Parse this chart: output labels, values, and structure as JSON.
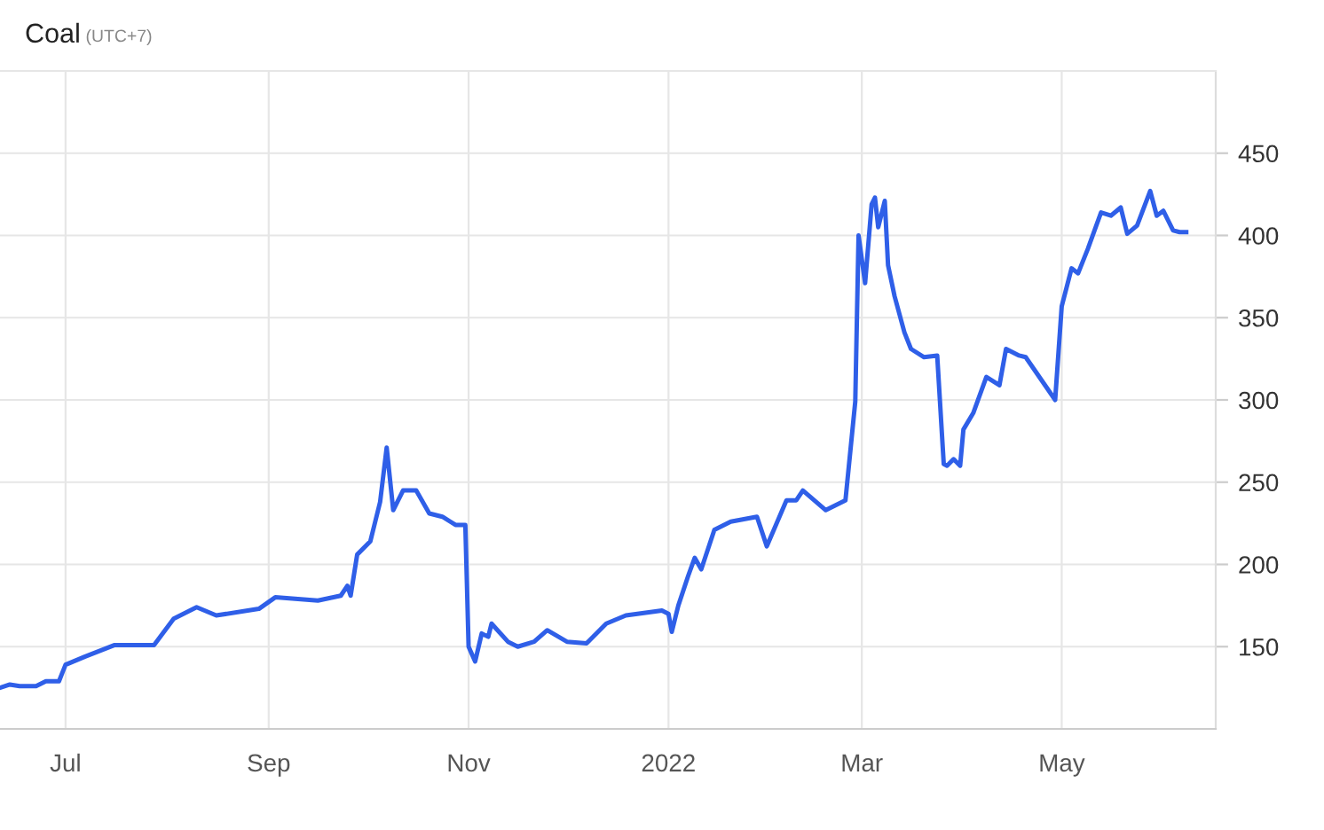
{
  "chart_data": {
    "type": "line",
    "title": "Coal",
    "subtitle": "(UTC+7)",
    "x": [
      "2021-06-11",
      "2021-06-14",
      "2021-06-17",
      "2021-06-22",
      "2021-06-25",
      "2021-06-29",
      "2021-07-01",
      "2021-07-07",
      "2021-07-16",
      "2021-07-28",
      "2021-08-03",
      "2021-08-10",
      "2021-08-16",
      "2021-08-29",
      "2021-09-03",
      "2021-09-16",
      "2021-09-23",
      "2021-09-25",
      "2021-09-26",
      "2021-09-28",
      "2021-10-02",
      "2021-10-05",
      "2021-10-07",
      "2021-10-09",
      "2021-10-12",
      "2021-10-16",
      "2021-10-20",
      "2021-10-24",
      "2021-10-28",
      "2021-10-31",
      "2021-11-01",
      "2021-11-03",
      "2021-11-05",
      "2021-11-07",
      "2021-11-08",
      "2021-11-13",
      "2021-11-16",
      "2021-11-21",
      "2021-11-25",
      "2021-12-01",
      "2021-12-07",
      "2021-12-13",
      "2021-12-19",
      "2021-12-30",
      "2022-01-01",
      "2022-01-02",
      "2022-01-04",
      "2022-01-07",
      "2022-01-09",
      "2022-01-11",
      "2022-01-15",
      "2022-01-20",
      "2022-01-28",
      "2022-01-31",
      "2022-02-06",
      "2022-02-09",
      "2022-02-11",
      "2022-02-18",
      "2022-02-24",
      "2022-02-27",
      "2022-02-28",
      "2022-03-02",
      "2022-03-04",
      "2022-03-05",
      "2022-03-06",
      "2022-03-08",
      "2022-03-09",
      "2022-03-11",
      "2022-03-14",
      "2022-03-16",
      "2022-03-20",
      "2022-03-24",
      "2022-03-26",
      "2022-03-27",
      "2022-03-29",
      "2022-03-31",
      "2022-04-01",
      "2022-04-04",
      "2022-04-08",
      "2022-04-12",
      "2022-04-14",
      "2022-04-18",
      "2022-04-20",
      "2022-04-29",
      "2022-05-01",
      "2022-05-04",
      "2022-05-06",
      "2022-05-09",
      "2022-05-13",
      "2022-05-16",
      "2022-05-19",
      "2022-05-21",
      "2022-05-24",
      "2022-05-28",
      "2022-05-30",
      "2022-06-01",
      "2022-06-04",
      "2022-06-06",
      "2022-06-08"
    ],
    "values": [
      125,
      127,
      126,
      126,
      129,
      129,
      139,
      144,
      151,
      151,
      167,
      174,
      169,
      173,
      180,
      178,
      181,
      187,
      181,
      206,
      214,
      238,
      271,
      233,
      245,
      245,
      231,
      229,
      224,
      224,
      150,
      141,
      158,
      156,
      164,
      153,
      150,
      153,
      160,
      153,
      152,
      164,
      169,
      172,
      170,
      159,
      175,
      193,
      204,
      197,
      221,
      226,
      229,
      211,
      239,
      239,
      245,
      233,
      239,
      299,
      400,
      371,
      419,
      423,
      405,
      421,
      382,
      363,
      341,
      331,
      326,
      327,
      261,
      260,
      264,
      260,
      282,
      292,
      314,
      309,
      331,
      327,
      326,
      300,
      357,
      380,
      377,
      392,
      414,
      412,
      417,
      401,
      406,
      427,
      412,
      415,
      403,
      402,
      402
    ],
    "color": "#2f5fe8",
    "xlim": [
      "2021-06-11",
      "2022-06-17"
    ],
    "xticks": [
      {
        "value": "2021-07-01",
        "label": "Jul"
      },
      {
        "value": "2021-09-01",
        "label": "Sep"
      },
      {
        "value": "2021-11-01",
        "label": "Nov"
      },
      {
        "value": "2022-01-01",
        "label": "2022"
      },
      {
        "value": "2022-03-01",
        "label": "Mar"
      },
      {
        "value": "2022-05-01",
        "label": "May"
      }
    ],
    "ylim": [
      100,
      500
    ],
    "yticks": [
      150,
      200,
      250,
      300,
      350,
      400,
      450
    ],
    "grid": true,
    "marker": "none",
    "line_style": "solid"
  }
}
